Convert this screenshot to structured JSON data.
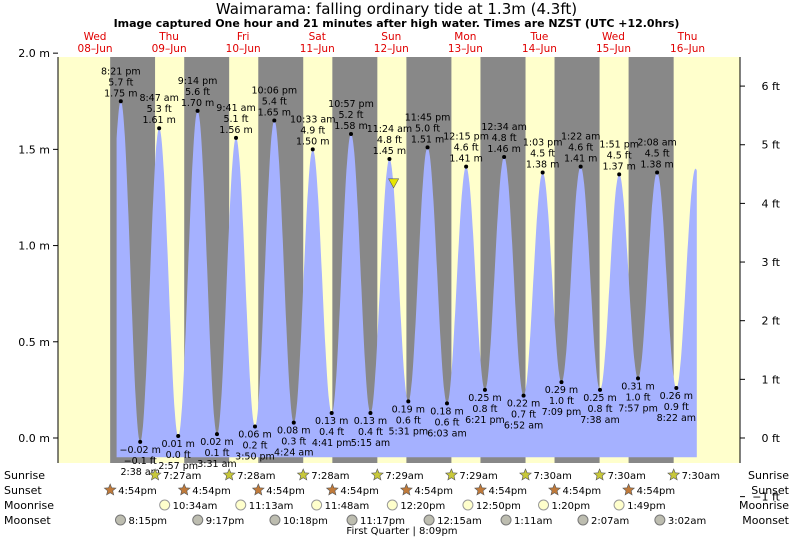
{
  "title": "Waimarama: falling  ordinary tide at 1.3m (4.3ft)",
  "subtitle": "Image captured One hour and 21 minutes after high water. Times are NZST (UTC +12.0hrs)",
  "colors": {
    "night": "#888888",
    "day": "#ffffcc",
    "water": "#a5b1ff",
    "day_label": "#e00000",
    "current_marker": "#e6e600"
  },
  "chart_data": {
    "type": "area",
    "title": "Waimarama: falling  ordinary tide at 1.3m (4.3ft)",
    "y_left_unit": "m",
    "y_right_unit": "ft",
    "ylim_m": [
      -0.13,
      1.98
    ],
    "y_left_ticks": [
      "2.0 m",
      "1.5 m",
      "1.0 m",
      "0.5 m",
      "0.0 m"
    ],
    "y_right_ticks": [
      "6 ft",
      "5 ft",
      "4 ft",
      "3 ft",
      "2 ft",
      "1 ft",
      "0 ft",
      "−1 ft"
    ],
    "x_start": "2022-06-08T00:00",
    "x_end": "2022-06-17T05:00",
    "days": [
      {
        "dow": "Wed",
        "date": "08–Jun",
        "t": "2022-06-08T12:00"
      },
      {
        "dow": "Thu",
        "date": "09–Jun",
        "t": "2022-06-09T12:00"
      },
      {
        "dow": "Fri",
        "date": "10–Jun",
        "t": "2022-06-10T12:00"
      },
      {
        "dow": "Sat",
        "date": "11–Jun",
        "t": "2022-06-11T12:00"
      },
      {
        "dow": "Sun",
        "date": "12–Jun",
        "t": "2022-06-12T12:00"
      },
      {
        "dow": "Mon",
        "date": "13–Jun",
        "t": "2022-06-13T12:00"
      },
      {
        "dow": "Tue",
        "date": "14–Jun",
        "t": "2022-06-14T12:00"
      },
      {
        "dow": "Wed",
        "date": "15–Jun",
        "t": "2022-06-15T12:00"
      },
      {
        "dow": "Thu",
        "date": "16–Jun",
        "t": "2022-06-16T12:00"
      }
    ],
    "tides": [
      {
        "type": "high",
        "t": "2022-06-08T20:21",
        "time": "8:21 pm",
        "ft": "5.7 ft",
        "m": 1.75,
        "m_label": "1.75 m"
      },
      {
        "type": "low",
        "t": "2022-06-09T02:38",
        "time": "2:38 am",
        "ft": "−0.1 ft",
        "m": -0.02,
        "m_label": "−0.02 m"
      },
      {
        "type": "high",
        "t": "2022-06-09T08:47",
        "time": "8:47 am",
        "ft": "5.3 ft",
        "m": 1.61,
        "m_label": "1.61 m"
      },
      {
        "type": "low",
        "t": "2022-06-09T14:57",
        "time": "2:57 pm",
        "ft": "0.0 ft",
        "m": 0.01,
        "m_label": "0.01 m"
      },
      {
        "type": "high",
        "t": "2022-06-09T21:14",
        "time": "9:14 pm",
        "ft": "5.6 ft",
        "m": 1.7,
        "m_label": "1.70 m"
      },
      {
        "type": "low",
        "t": "2022-06-10T03:31",
        "time": "3:31 am",
        "ft": "0.1 ft",
        "m": 0.02,
        "m_label": "0.02 m"
      },
      {
        "type": "high",
        "t": "2022-06-10T09:41",
        "time": "9:41 am",
        "ft": "5.1 ft",
        "m": 1.56,
        "m_label": "1.56 m"
      },
      {
        "type": "low",
        "t": "2022-06-10T15:50",
        "time": "3:50 pm",
        "ft": "0.2 ft",
        "m": 0.06,
        "m_label": "0.06 m"
      },
      {
        "type": "high",
        "t": "2022-06-10T22:06",
        "time": "10:06 pm",
        "ft": "5.4 ft",
        "m": 1.65,
        "m_label": "1.65 m"
      },
      {
        "type": "low",
        "t": "2022-06-11T04:24",
        "time": "4:24 am",
        "ft": "0.3 ft",
        "m": 0.08,
        "m_label": "0.08 m"
      },
      {
        "type": "high",
        "t": "2022-06-11T10:33",
        "time": "10:33 am",
        "ft": "4.9 ft",
        "m": 1.5,
        "m_label": "1.50 m"
      },
      {
        "type": "low",
        "t": "2022-06-11T16:41",
        "time": "4:41 pm",
        "ft": "0.4 ft",
        "m": 0.13,
        "m_label": "0.13 m"
      },
      {
        "type": "high",
        "t": "2022-06-11T22:57",
        "time": "10:57 pm",
        "ft": "5.2 ft",
        "m": 1.58,
        "m_label": "1.58 m"
      },
      {
        "type": "low",
        "t": "2022-06-12T05:15",
        "time": "5:15 am",
        "ft": "0.4 ft",
        "m": 0.13,
        "m_label": "0.13 m"
      },
      {
        "type": "high",
        "t": "2022-06-12T11:24",
        "time": "11:24 am",
        "ft": "4.8 ft",
        "m": 1.45,
        "m_label": "1.45 m"
      },
      {
        "type": "low",
        "t": "2022-06-12T17:31",
        "time": "5:31 pm",
        "ft": "0.6 ft",
        "m": 0.19,
        "m_label": "0.19 m"
      },
      {
        "type": "high",
        "t": "2022-06-12T23:45",
        "time": "11:45 pm",
        "ft": "5.0 ft",
        "m": 1.51,
        "m_label": "1.51 m"
      },
      {
        "type": "low",
        "t": "2022-06-13T06:03",
        "time": "6:03 am",
        "ft": "0.6 ft",
        "m": 0.18,
        "m_label": "0.18 m"
      },
      {
        "type": "high",
        "t": "2022-06-13T12:15",
        "time": "12:15 pm",
        "ft": "4.6 ft",
        "m": 1.41,
        "m_label": "1.41 m"
      },
      {
        "type": "low",
        "t": "2022-06-13T18:21",
        "time": "6:21 pm",
        "ft": "0.8 ft",
        "m": 0.25,
        "m_label": "0.25 m"
      },
      {
        "type": "high",
        "t": "2022-06-14T00:34",
        "time": "12:34 am",
        "ft": "4.8 ft",
        "m": 1.46,
        "m_label": "1.46 m"
      },
      {
        "type": "low",
        "t": "2022-06-14T06:52",
        "time": "6:52 am",
        "ft": "0.7 ft",
        "m": 0.22,
        "m_label": "0.22 m"
      },
      {
        "type": "high",
        "t": "2022-06-14T13:03",
        "time": "1:03 pm",
        "ft": "4.5 ft",
        "m": 1.38,
        "m_label": "1.38 m"
      },
      {
        "type": "low",
        "t": "2022-06-14T19:09",
        "time": "7:09 pm",
        "ft": "1.0 ft",
        "m": 0.29,
        "m_label": "0.29 m"
      },
      {
        "type": "high",
        "t": "2022-06-15T01:22",
        "time": "1:22 am",
        "ft": "4.6 ft",
        "m": 1.41,
        "m_label": "1.41 m"
      },
      {
        "type": "low",
        "t": "2022-06-15T07:38",
        "time": "7:38 am",
        "ft": "0.8 ft",
        "m": 0.25,
        "m_label": "0.25 m"
      },
      {
        "type": "high",
        "t": "2022-06-15T13:51",
        "time": "1:51 pm",
        "ft": "4.5 ft",
        "m": 1.37,
        "m_label": "1.37 m"
      },
      {
        "type": "low",
        "t": "2022-06-15T19:57",
        "time": "7:57 pm",
        "ft": "1.0 ft",
        "m": 0.31,
        "m_label": "0.31 m"
      },
      {
        "type": "high",
        "t": "2022-06-16T02:08",
        "time": "2:08 am",
        "ft": "4.5 ft",
        "m": 1.38,
        "m_label": "1.38 m"
      },
      {
        "type": "low",
        "t": "2022-06-16T08:22",
        "time": "8:22 am",
        "ft": "0.9 ft",
        "m": 0.26,
        "m_label": "0.26 m"
      }
    ],
    "current_marker": {
      "t": "2022-06-12T12:45",
      "m": 1.3
    }
  },
  "astro": {
    "row_labels": [
      "Sunrise",
      "Sunset",
      "Moonrise",
      "Moonset"
    ],
    "sunrise": [
      {
        "t": "2022-06-09T07:27",
        "label": "7:27am"
      },
      {
        "t": "2022-06-10T07:28",
        "label": "7:28am"
      },
      {
        "t": "2022-06-11T07:28",
        "label": "7:28am"
      },
      {
        "t": "2022-06-12T07:29",
        "label": "7:29am"
      },
      {
        "t": "2022-06-13T07:29",
        "label": "7:29am"
      },
      {
        "t": "2022-06-14T07:30",
        "label": "7:30am"
      },
      {
        "t": "2022-06-15T07:30",
        "label": "7:30am"
      },
      {
        "t": "2022-06-16T07:30",
        "label": "7:30am"
      }
    ],
    "sunset": [
      {
        "t": "2022-06-08T16:54",
        "label": "4:54pm"
      },
      {
        "t": "2022-06-09T16:54",
        "label": "4:54pm"
      },
      {
        "t": "2022-06-10T16:54",
        "label": "4:54pm"
      },
      {
        "t": "2022-06-11T16:54",
        "label": "4:54pm"
      },
      {
        "t": "2022-06-12T16:54",
        "label": "4:54pm"
      },
      {
        "t": "2022-06-13T16:54",
        "label": "4:54pm"
      },
      {
        "t": "2022-06-14T16:54",
        "label": "4:54pm"
      },
      {
        "t": "2022-06-15T16:54",
        "label": "4:54pm"
      }
    ],
    "moonrise": [
      {
        "t": "2022-06-09T10:34",
        "label": "10:34am"
      },
      {
        "t": "2022-06-10T11:13",
        "label": "11:13am"
      },
      {
        "t": "2022-06-11T11:48",
        "label": "11:48am"
      },
      {
        "t": "2022-06-12T12:20",
        "label": "12:20pm"
      },
      {
        "t": "2022-06-13T12:50",
        "label": "12:50pm"
      },
      {
        "t": "2022-06-14T13:20",
        "label": "1:20pm"
      },
      {
        "t": "2022-06-15T13:49",
        "label": "1:49pm"
      }
    ],
    "moonset": [
      {
        "t": "2022-06-08T20:15",
        "label": "8:15pm"
      },
      {
        "t": "2022-06-09T21:17",
        "label": "9:17pm"
      },
      {
        "t": "2022-06-10T22:18",
        "label": "10:18pm"
      },
      {
        "t": "2022-06-11T23:17",
        "label": "11:17pm"
      },
      {
        "t": "2022-06-13T00:15",
        "label": "12:15am"
      },
      {
        "t": "2022-06-14T01:11",
        "label": "1:11am"
      },
      {
        "t": "2022-06-15T02:07",
        "label": "2:07am"
      },
      {
        "t": "2022-06-16T03:02",
        "label": "3:02am"
      }
    ],
    "moon_phase_note": "First Quarter | 8:09pm"
  }
}
